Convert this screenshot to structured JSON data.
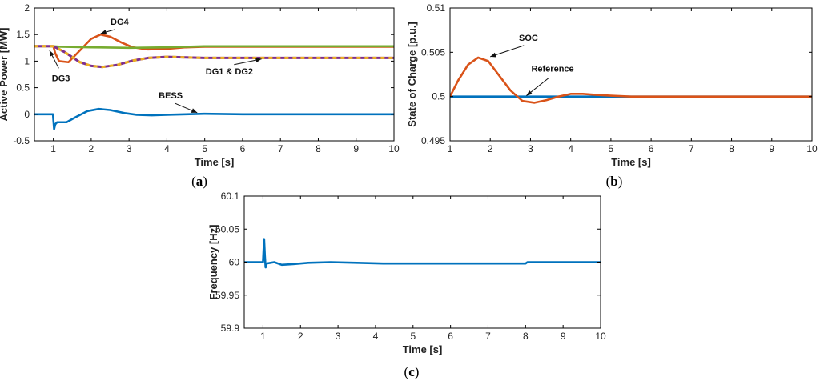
{
  "colors": {
    "orange": "#d95319",
    "green": "#77ac30",
    "blue": "#0072bd",
    "purple": "#7e2f8e",
    "yellow": "#edb120",
    "axis": "#000000"
  },
  "panel_labels": [
    {
      "open": "(",
      "letter": "a",
      "close": ")"
    },
    {
      "open": "(",
      "letter": "b",
      "close": ")"
    },
    {
      "open": "(",
      "letter": "c",
      "close": ")"
    }
  ],
  "chart_data": [
    {
      "type": "line",
      "id": "a",
      "title": "",
      "xlabel": "Time [s]",
      "ylabel": "Active Power [MW]",
      "xlim": [
        0.5,
        10
      ],
      "ylim": [
        -0.5,
        2
      ],
      "xticks": [
        1,
        2,
        3,
        4,
        5,
        6,
        7,
        8,
        9,
        10
      ],
      "yticks": [
        -0.5,
        0,
        0.5,
        1,
        1.5,
        2
      ],
      "ytick_labels": [
        "-0.5",
        "0",
        "0.5",
        "1",
        "1.5",
        "2"
      ],
      "series": [
        {
          "name": "DG4",
          "color": "orange",
          "x": [
            0.5,
            1.0,
            1.05,
            1.15,
            1.4,
            1.7,
            2.0,
            2.25,
            2.5,
            2.8,
            3.1,
            3.5,
            4.0,
            4.5,
            5.0,
            6.0,
            10.0
          ],
          "y": [
            1.28,
            1.28,
            1.15,
            1.0,
            0.98,
            1.2,
            1.42,
            1.5,
            1.46,
            1.35,
            1.26,
            1.22,
            1.23,
            1.26,
            1.27,
            1.27,
            1.27
          ]
        },
        {
          "name": "DG3",
          "color": "green",
          "x": [
            0.5,
            1.0,
            1.2,
            2.0,
            3.0,
            4.0,
            5.0,
            6.0,
            10.0
          ],
          "y": [
            1.28,
            1.28,
            1.27,
            1.26,
            1.25,
            1.26,
            1.28,
            1.28,
            1.28
          ]
        },
        {
          "name": "DG1 & DG2",
          "color": "purple",
          "dash_color": "yellow",
          "x": [
            0.5,
            1.0,
            1.3,
            1.7,
            2.0,
            2.3,
            2.7,
            3.1,
            3.5,
            4.0,
            4.5,
            5.0,
            6.0,
            10.0
          ],
          "y": [
            1.28,
            1.28,
            1.17,
            0.98,
            0.91,
            0.89,
            0.93,
            1.01,
            1.06,
            1.08,
            1.07,
            1.06,
            1.06,
            1.06
          ]
        },
        {
          "name": "BESS",
          "color": "blue",
          "x": [
            0.5,
            0.99,
            1.0,
            1.02,
            1.05,
            1.1,
            1.35,
            1.6,
            1.9,
            2.2,
            2.5,
            2.9,
            3.2,
            3.6,
            4.0,
            4.5,
            5.0,
            6.0,
            10.0
          ],
          "y": [
            0,
            0,
            -0.1,
            -0.28,
            -0.19,
            -0.15,
            -0.15,
            -0.05,
            0.06,
            0.1,
            0.08,
            0.02,
            -0.01,
            -0.02,
            -0.01,
            0.0,
            0.01,
            0.0,
            0.0
          ]
        }
      ],
      "annotations": [
        {
          "text": "DG4",
          "x": 2.75,
          "y": 1.68,
          "ax": 2.25,
          "ay": 1.52
        },
        {
          "text": "DG3",
          "x": 1.2,
          "y": 0.62,
          "ax": 0.9,
          "ay": 1.2
        },
        {
          "text": "DG1 & DG2",
          "x": 5.65,
          "y": 0.75,
          "ax": 6.5,
          "ay": 1.04
        },
        {
          "text": "BESS",
          "x": 4.1,
          "y": 0.3,
          "ax": 4.8,
          "ay": 0.03
        }
      ]
    },
    {
      "type": "line",
      "id": "b",
      "title": "",
      "xlabel": "Time [s]",
      "ylabel": "State of Charge [p.u.]",
      "xlim": [
        1,
        10
      ],
      "ylim": [
        0.495,
        0.51
      ],
      "xticks": [
        1,
        2,
        3,
        4,
        5,
        6,
        7,
        8,
        9,
        10
      ],
      "yticks": [
        0.495,
        0.5,
        0.505,
        0.51
      ],
      "ytick_labels": [
        "0.495",
        "0.5",
        "0.505",
        "0.51"
      ],
      "series": [
        {
          "name": "Reference",
          "color": "blue",
          "x": [
            1,
            10
          ],
          "y": [
            0.5,
            0.5
          ]
        },
        {
          "name": "SOC",
          "color": "orange",
          "x": [
            1.0,
            1.2,
            1.45,
            1.7,
            1.95,
            2.2,
            2.5,
            2.8,
            3.1,
            3.4,
            3.7,
            4.0,
            4.3,
            4.6,
            5.0,
            5.5,
            6.0,
            10.0
          ],
          "y": [
            0.5,
            0.5018,
            0.5036,
            0.5044,
            0.504,
            0.5025,
            0.5007,
            0.4995,
            0.4993,
            0.4996,
            0.5,
            0.5003,
            0.5003,
            0.5002,
            0.5001,
            0.5,
            0.5,
            0.5
          ]
        }
      ],
      "annotations": [
        {
          "text": "SOC",
          "x": 2.95,
          "y": 0.5063,
          "ax": 2.0,
          "ay": 0.5045
        },
        {
          "text": "Reference",
          "x": 3.55,
          "y": 0.5028,
          "ax": 2.9,
          "ay": 0.5001
        }
      ]
    },
    {
      "type": "line",
      "id": "c",
      "title": "",
      "xlabel": "Time [s]",
      "ylabel": "Frequency [Hz]",
      "xlim": [
        0.5,
        10
      ],
      "ylim": [
        59.9,
        60.1
      ],
      "xticks": [
        1,
        2,
        3,
        4,
        5,
        6,
        7,
        8,
        9,
        10
      ],
      "yticks": [
        59.9,
        59.95,
        60,
        60.05,
        60.1
      ],
      "ytick_labels": [
        "59.9",
        "59.95",
        "60",
        "60.05",
        "60.1"
      ],
      "series": [
        {
          "name": "Frequency",
          "color": "blue",
          "x": [
            0.5,
            0.99,
            1.0,
            1.03,
            1.05,
            1.07,
            1.1,
            1.2,
            1.3,
            1.5,
            1.8,
            2.2,
            2.8,
            3.5,
            4.2,
            5.0,
            6.0,
            7.0,
            8.0,
            8.05,
            10.0
          ],
          "y": [
            60.0,
            60.0,
            60.0,
            60.035,
            60.01,
            59.992,
            59.998,
            59.999,
            60.0,
            59.996,
            59.997,
            59.999,
            60.0,
            59.999,
            59.998,
            59.998,
            59.998,
            59.998,
            59.998,
            60.0,
            60.0
          ]
        }
      ],
      "annotations": []
    }
  ]
}
